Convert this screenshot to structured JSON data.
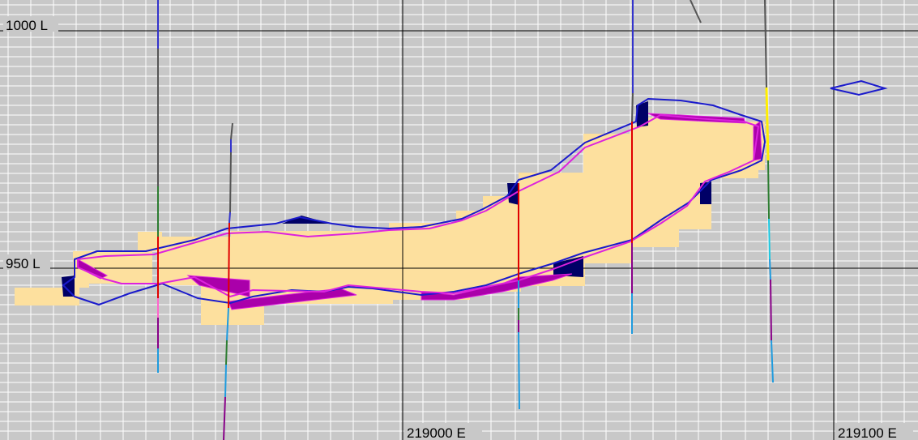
{
  "view": {
    "background": "#c8c8c8",
    "minor_grid_color": "#ffffff",
    "major_grid_color": "#000000",
    "block_color": "#fde09e",
    "outer_outline_color": "#1a1acc",
    "inner_outline_color": "#dd22dd",
    "shadow_color": "#000066"
  },
  "labels": {
    "level_1000": "1000 L",
    "level_950": "950 L",
    "easting_219000": "219000 E",
    "easting_219100": "219100 E"
  },
  "drillholes": [
    {
      "id": "dh-1"
    },
    {
      "id": "dh-2"
    },
    {
      "id": "dh-3"
    },
    {
      "id": "dh-4"
    },
    {
      "id": "dh-5"
    },
    {
      "id": "dh-6"
    }
  ]
}
